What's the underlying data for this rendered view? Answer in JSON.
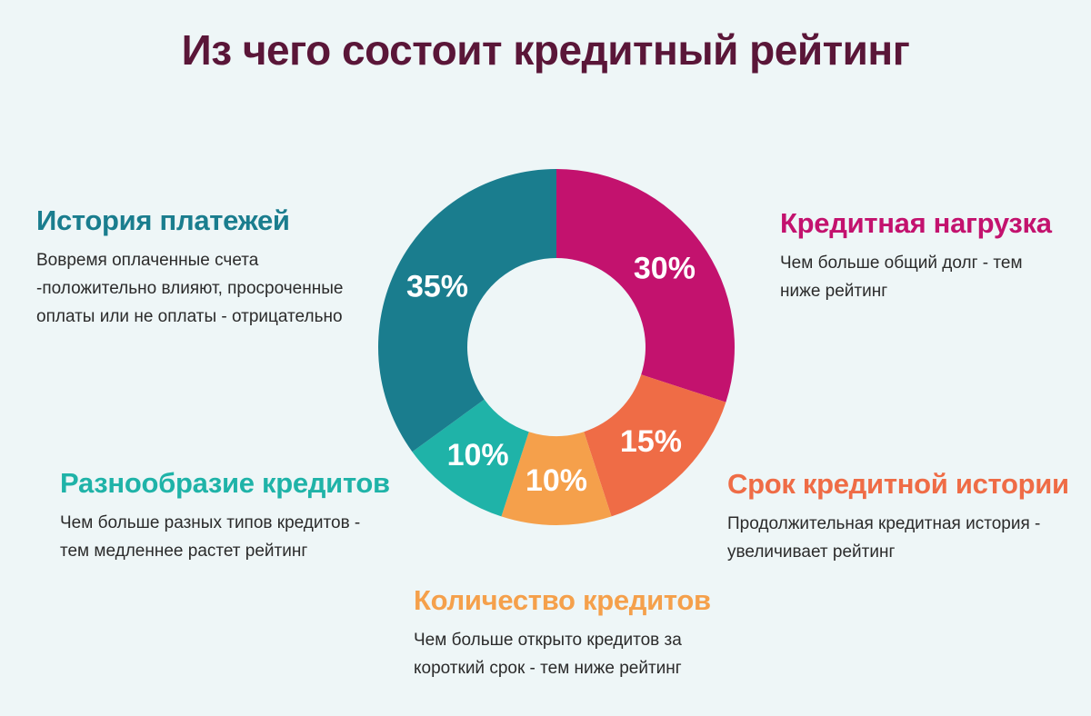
{
  "title": "Из чего состоит кредитный рейтинг",
  "colors": {
    "background": "#eef6f7",
    "title": "#5a1638",
    "history": "#1a7d8e",
    "load": "#c3126e",
    "term": "#ef6c46",
    "count": "#f5a04b",
    "diversity": "#1fb3a8"
  },
  "blocks": {
    "history": {
      "heading": "История платежей",
      "lines": [
        "Вовремя оплаченные счета",
        "-положительно влияют, просроченные",
        "оплаты или не оплаты - отрицательно"
      ]
    },
    "load": {
      "heading": "Кредитная нагрузка",
      "lines": [
        "Чем больше общий долг - тем",
        "ниже рейтинг"
      ]
    },
    "diversity": {
      "heading": "Разнообразие кредитов",
      "lines": [
        "Чем больше разных типов кредитов -",
        "тем медленнее растет рейтинг"
      ]
    },
    "term": {
      "heading": "Срок кредитной истории",
      "lines": [
        "Продолжительная кредитная история -",
        "увеличивает рейтинг"
      ]
    },
    "count": {
      "heading": "Количество кредитов",
      "lines": [
        "Чем больше открыто кредитов за",
        "короткий срок - тем ниже рейтинг"
      ]
    }
  },
  "chart_data": {
    "type": "pie",
    "style": "donut",
    "title": "Из чего состоит кредитный рейтинг",
    "slices": [
      {
        "label": "Кредитная нагрузка",
        "value": 30,
        "display": "30%",
        "color": "#c3126e"
      },
      {
        "label": "Срок кредитной истории",
        "value": 15,
        "display": "15%",
        "color": "#ef6c46"
      },
      {
        "label": "Количество кредитов",
        "value": 10,
        "display": "10%",
        "color": "#f5a04b"
      },
      {
        "label": "Разнообразие кредитов",
        "value": 10,
        "display": "10%",
        "color": "#1fb3a8"
      },
      {
        "label": "История платежей",
        "value": 35,
        "display": "35%",
        "color": "#1a7d8e"
      }
    ]
  }
}
